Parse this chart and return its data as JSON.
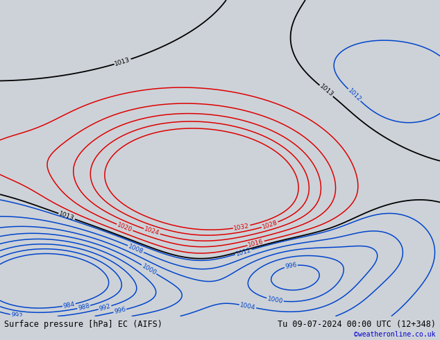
{
  "title_left": "Surface pressure [hPa] EC (AIFS)",
  "title_right": "Tu 09-07-2024 00:00 UTC (12+348)",
  "credit": "©weatheronline.co.uk",
  "bg_color": "#cdd2d8",
  "land_color": "#c8e8b0",
  "coast_color": "#888888",
  "title_fontsize": 8.5,
  "credit_color": "#0000cc",
  "red_color": "#dd0000",
  "blue_color": "#0044cc",
  "black_color": "#000000",
  "lon_min": 95,
  "lon_max": 185,
  "lat_min": -62,
  "lat_max": 12,
  "red_levels": [
    1016,
    1020,
    1024,
    1028,
    1032
  ],
  "blue_levels": [
    984,
    988,
    992,
    996,
    1000,
    1004,
    1008,
    1012
  ],
  "black_levels": [
    1013
  ],
  "label_fontsize": 6.5
}
